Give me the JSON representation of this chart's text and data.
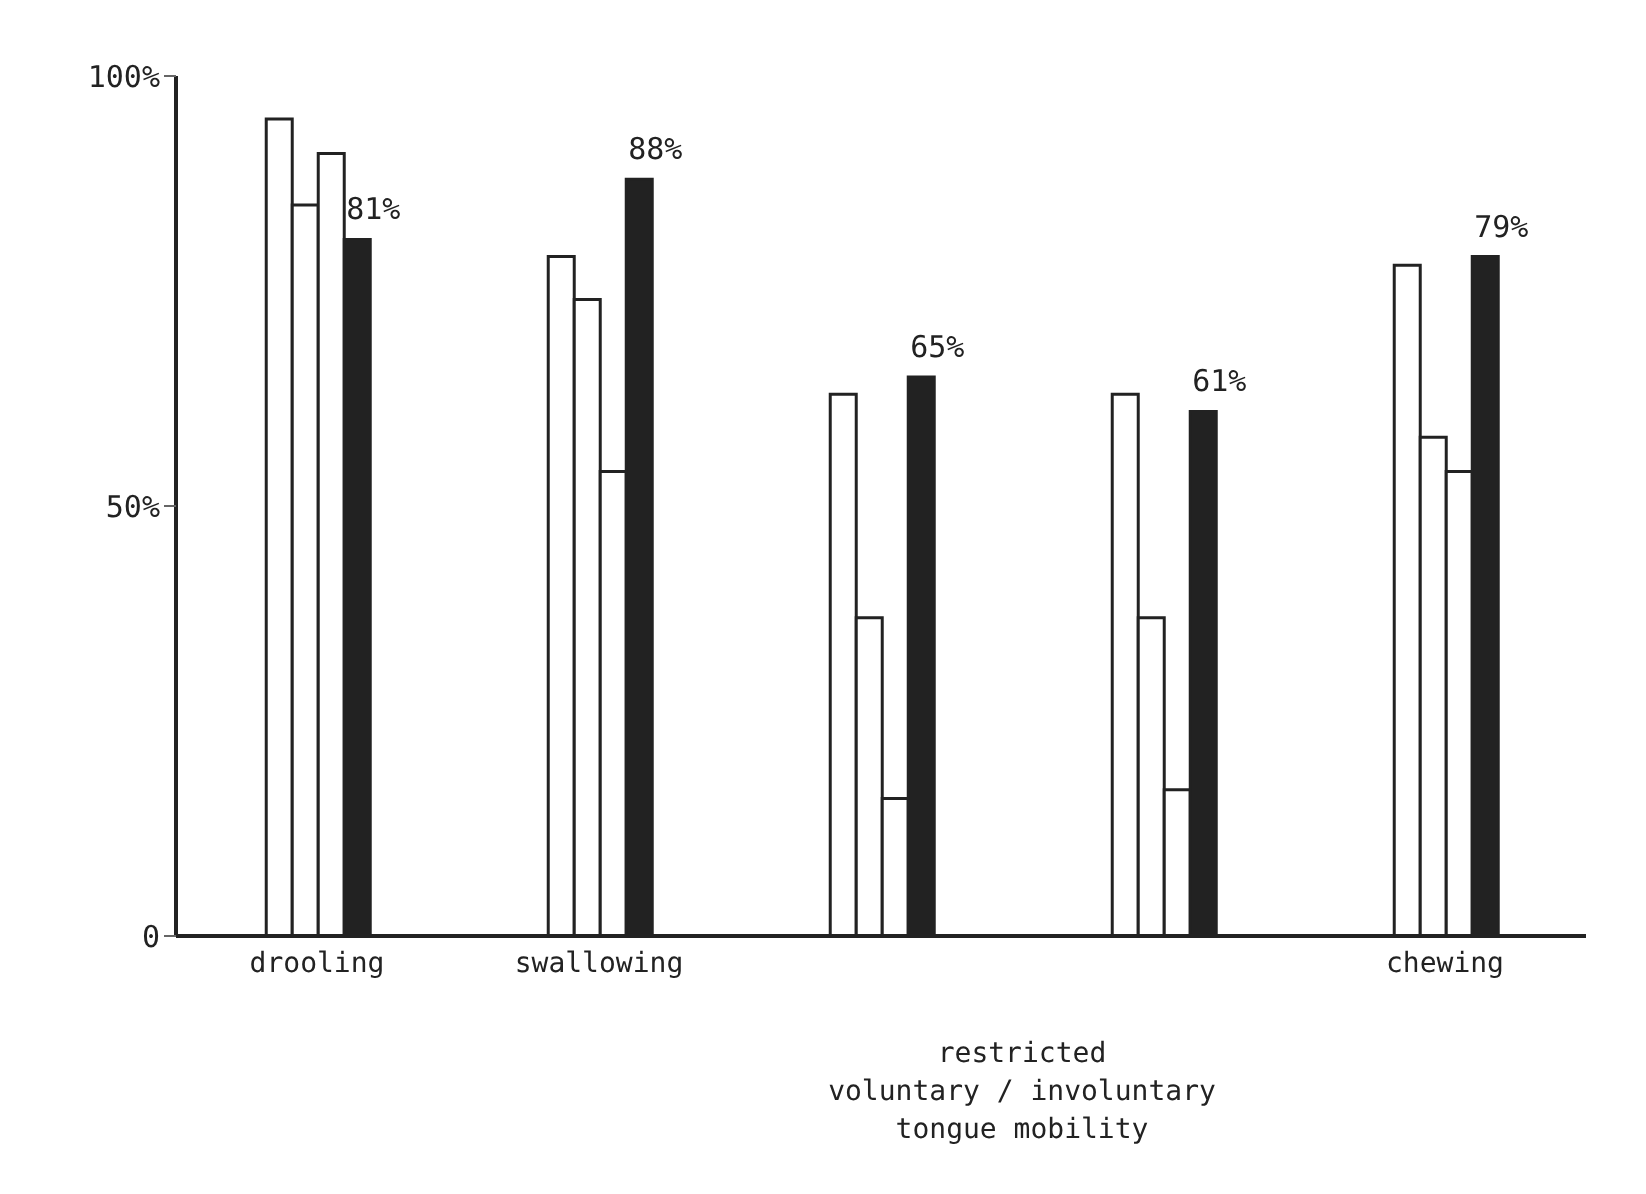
{
  "chart_data": {
    "type": "bar",
    "categories": [
      "drooling",
      "swallowing",
      null,
      null,
      "chewing"
    ],
    "series": [
      {
        "color": "#ffffff",
        "values": [
          95,
          79,
          63,
          63,
          78
        ]
      },
      {
        "color": "#ffffff",
        "values": [
          85,
          74,
          37,
          37,
          58
        ]
      },
      {
        "color": "#ffffff",
        "values": [
          91,
          54,
          16,
          17,
          54
        ]
      },
      {
        "color": "#222222",
        "values": [
          81,
          88,
          65,
          61,
          79
        ],
        "value_labels": [
          "81%",
          "88%",
          "65%",
          "61%",
          "79%"
        ]
      }
    ],
    "ylim": [
      0,
      100
    ],
    "yticks": [
      {
        "value": 0,
        "label": "0"
      },
      {
        "value": 50,
        "label": "50%"
      },
      {
        "value": 100,
        "label": "100%"
      }
    ],
    "annotations": [
      "restricted\nvoluntary / involuntary\ntongue mobility"
    ]
  }
}
